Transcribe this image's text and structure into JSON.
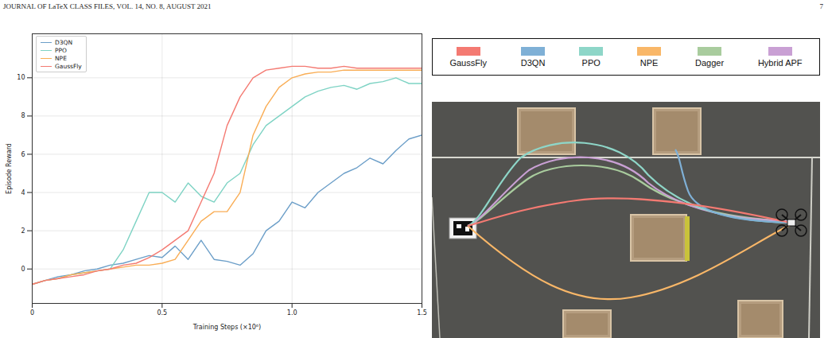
{
  "header": {
    "title": "JOURNAL OF LaTeX CLASS FILES, VOL. 14, NO. 8, AUGUST 2021",
    "page": "7"
  },
  "chart_data": {
    "type": "line",
    "xlabel": "Training Steps (×10⁶)",
    "ylabel": "Episode Reward",
    "x": [
      0,
      0.05,
      0.1,
      0.15,
      0.2,
      0.25,
      0.3,
      0.35,
      0.4,
      0.45,
      0.5,
      0.55,
      0.6,
      0.65,
      0.7,
      0.75,
      0.8,
      0.85,
      0.9,
      0.95,
      1.0,
      1.05,
      1.1,
      1.15,
      1.2,
      1.25,
      1.3,
      1.35,
      1.4,
      1.45,
      1.5
    ],
    "xlim": [
      0,
      1.5
    ],
    "xticks": [
      0,
      0.5,
      {
        "value": 1,
        "label": "1.0"
      },
      1.5
    ],
    "ylim": [
      -1.8,
      12.3
    ],
    "yticks": [
      0,
      2,
      4,
      6,
      8,
      10
    ],
    "grid": true,
    "legend": "upper left",
    "series": [
      {
        "name": "D3QN",
        "color": "#6b9ec8",
        "values": [
          -0.8,
          -0.6,
          -0.4,
          -0.3,
          -0.1,
          0,
          0.2,
          0.3,
          0.5,
          0.7,
          0.6,
          1.2,
          0.5,
          1.5,
          0.5,
          0.4,
          0.2,
          0.8,
          2,
          2.5,
          3.5,
          3.2,
          4,
          4.5,
          5,
          5.3,
          5.8,
          5.5,
          6.2,
          6.8,
          7
        ]
      },
      {
        "name": "PPO",
        "color": "#7ed3c4",
        "values": [
          -0.8,
          -0.6,
          -0.5,
          -0.3,
          -0.2,
          -0.1,
          0,
          1,
          2.5,
          4,
          4,
          3.5,
          4.5,
          3.8,
          3.5,
          4.5,
          5,
          6.5,
          7.5,
          8,
          8.5,
          9,
          9.3,
          9.5,
          9.6,
          9.4,
          9.7,
          9.8,
          10,
          9.7,
          9.7
        ]
      },
      {
        "name": "NPE",
        "color": "#f9ad55",
        "values": [
          -0.8,
          -0.6,
          -0.5,
          -0.3,
          -0.2,
          -0.1,
          0,
          0.1,
          0.2,
          0.2,
          0.3,
          0.5,
          1.5,
          2.5,
          3,
          3,
          4,
          7,
          8.5,
          9.5,
          10,
          10.2,
          10.3,
          10.3,
          10.4,
          10.4,
          10.4,
          10.4,
          10.4,
          10.4,
          10.4
        ]
      },
      {
        "name": "GaussFly",
        "color": "#f47a72",
        "values": [
          -0.8,
          -0.6,
          -0.5,
          -0.4,
          -0.3,
          -0.1,
          0,
          0.2,
          0.3,
          0.6,
          1,
          1.5,
          2,
          3.5,
          5,
          7.5,
          9,
          10,
          10.4,
          10.5,
          10.6,
          10.6,
          10.5,
          10.5,
          10.6,
          10.5,
          10.5,
          10.5,
          10.5,
          10.5,
          10.5
        ]
      }
    ]
  },
  "figure": {
    "legend": [
      {
        "name": "GaussFly",
        "color": "#f47a72"
      },
      {
        "name": "D3QN",
        "color": "#7fb0d6"
      },
      {
        "name": "PPO",
        "color": "#8ed6c8"
      },
      {
        "name": "NPE",
        "color": "#f9b768"
      },
      {
        "name": "Dagger",
        "color": "#a9cc9e"
      },
      {
        "name": "Hybrid APF",
        "color": "#c9a0d4"
      }
    ]
  }
}
